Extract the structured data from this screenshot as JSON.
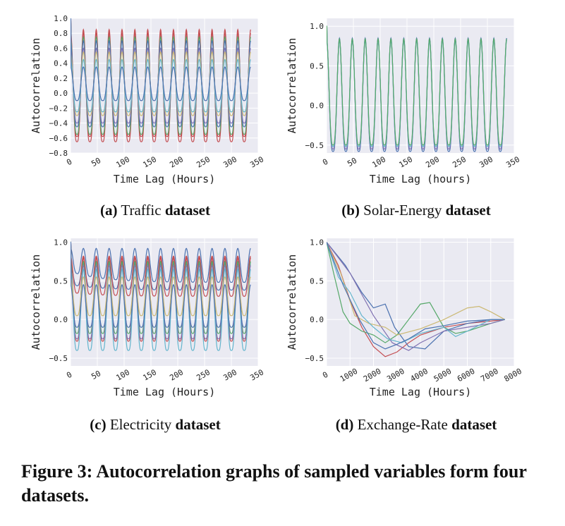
{
  "chart_data": [
    {
      "type": "line",
      "panel": "a",
      "caption_prefix": "(a)",
      "caption_name": "Traffic",
      "caption_suffix": "dataset",
      "xlabel": "Time Lag (Hours)",
      "ylabel": "Autocorrelation",
      "xlim": [
        0,
        350
      ],
      "ylim": [
        -0.8,
        1.0
      ],
      "xticks": [
        "0",
        "50",
        "100",
        "150",
        "200",
        "250",
        "300",
        "350"
      ],
      "xtick_values": [
        0,
        50,
        100,
        150,
        200,
        250,
        300,
        350
      ],
      "yticks": [
        "1.0",
        "0.8",
        "0.6",
        "0.4",
        "0.2",
        "0.0",
        "−0.2",
        "−0.4",
        "−0.6",
        "−0.8"
      ],
      "ytick_values": [
        1.0,
        0.8,
        0.6,
        0.4,
        0.2,
        0.0,
        -0.2,
        -0.4,
        -0.6,
        -0.8
      ],
      "x_max_data": 336,
      "period": 24,
      "generator": "periodic",
      "series": [
        {
          "name": "s1",
          "color": "#C44E52",
          "max": 0.85,
          "min": -0.65,
          "decay": 0.0
        },
        {
          "name": "s2",
          "color": "#C44E52",
          "max": 0.8,
          "min": -0.58,
          "decay": 0.0
        },
        {
          "name": "s3",
          "color": "#55A868",
          "max": 0.75,
          "min": -0.55,
          "decay": 0.0
        },
        {
          "name": "s4",
          "color": "#4C72B0",
          "max": 0.7,
          "min": -0.45,
          "decay": 0.0
        },
        {
          "name": "s5",
          "color": "#8172B2",
          "max": 0.6,
          "min": -0.4,
          "decay": 0.0
        },
        {
          "name": "s6",
          "color": "#CCB974",
          "max": 0.55,
          "min": -0.3,
          "decay": 0.0
        },
        {
          "name": "s7",
          "color": "#64B5CD",
          "max": 0.45,
          "min": -0.25,
          "decay": 0.0
        },
        {
          "name": "s8",
          "color": "#4C72B0",
          "max": 0.35,
          "min": -0.1,
          "decay": 0.0
        }
      ]
    },
    {
      "type": "line",
      "panel": "b",
      "caption_prefix": "(b)",
      "caption_name": "Solar-Energy",
      "caption_suffix": "dataset",
      "xlabel": "Time Lag (hours)",
      "ylabel": "Autocorrelation",
      "xlim": [
        0,
        350
      ],
      "ylim": [
        -0.6,
        1.1
      ],
      "xticks": [
        "0",
        "50",
        "100",
        "150",
        "200",
        "250",
        "300",
        "350"
      ],
      "xtick_values": [
        0,
        50,
        100,
        150,
        200,
        250,
        300,
        350
      ],
      "yticks": [
        "1.0",
        "0.5",
        "0.0",
        "−0.5"
      ],
      "ytick_values": [
        1.0,
        0.5,
        0.0,
        -0.5
      ],
      "x_max_data": 336,
      "period": 24,
      "generator": "periodic",
      "series": [
        {
          "name": "s1",
          "color": "#4C72B0",
          "max": 0.85,
          "min": -0.58,
          "decay": 0.0
        },
        {
          "name": "s2",
          "color": "#8172B2",
          "max": 0.83,
          "min": -0.55,
          "decay": 0.0
        },
        {
          "name": "s3",
          "color": "#64B5CD",
          "max": 0.82,
          "min": -0.52,
          "decay": 0.0
        },
        {
          "name": "s4",
          "color": "#55A868",
          "max": 0.84,
          "min": -0.5,
          "decay": 0.0
        }
      ]
    },
    {
      "type": "line",
      "panel": "c",
      "caption_prefix": "(c)",
      "caption_name": "Electricity",
      "caption_suffix": "dataset",
      "xlabel": "Time Lag (Hours)",
      "ylabel": "Autocorrelation",
      "xlim": [
        0,
        350
      ],
      "ylim": [
        -0.6,
        1.05
      ],
      "xticks": [
        "0",
        "50",
        "100",
        "150",
        "200",
        "250",
        "300",
        "350"
      ],
      "xtick_values": [
        0,
        50,
        100,
        150,
        200,
        250,
        300,
        350
      ],
      "yticks": [
        "1.0",
        "0.5",
        "0.0",
        "−0.5"
      ],
      "ytick_values": [
        1.0,
        0.5,
        0.0,
        -0.5
      ],
      "x_max_data": 336,
      "period": 24,
      "generator": "periodic",
      "series": [
        {
          "name": "s1",
          "color": "#4C72B0",
          "max": 0.92,
          "min": 0.62,
          "decay": 0.45,
          "floor": 0.48
        },
        {
          "name": "s2",
          "color": "#4C72B0",
          "max": 0.72,
          "min": 0.45,
          "decay": 0.35,
          "floor": 0.38
        },
        {
          "name": "s3",
          "color": "#C44E52",
          "max": 0.82,
          "min": 0.35,
          "decay": 0.2,
          "floor": 0.3
        },
        {
          "name": "s4",
          "color": "#C44E52",
          "max": 0.8,
          "min": -0.28,
          "decay": 0.0
        },
        {
          "name": "s5",
          "color": "#55A868",
          "max": 0.75,
          "min": -0.18,
          "decay": 0.0
        },
        {
          "name": "s6",
          "color": "#8172B2",
          "max": 0.7,
          "min": -0.25,
          "decay": 0.0
        },
        {
          "name": "s7",
          "color": "#64B5CD",
          "max": 0.65,
          "min": -0.4,
          "decay": 0.0
        },
        {
          "name": "s8",
          "color": "#CCB974",
          "max": 0.55,
          "min": 0.05,
          "decay": 0.0
        },
        {
          "name": "s9",
          "color": "#4C72B0",
          "max": 0.45,
          "min": -0.1,
          "decay": 0.0
        }
      ]
    },
    {
      "type": "line",
      "panel": "d",
      "caption_prefix": "(d)",
      "caption_name": "Exchange-Rate",
      "caption_suffix": "dataset",
      "xlabel": "Time Lag (Hours)",
      "ylabel": "Autocorrelation",
      "xlim": [
        0,
        8000
      ],
      "ylim": [
        -0.6,
        1.05
      ],
      "xticks": [
        "0",
        "1000",
        "2000",
        "3000",
        "4000",
        "5000",
        "6000",
        "7000",
        "8000"
      ],
      "xtick_values": [
        0,
        1000,
        2000,
        3000,
        4000,
        5000,
        6000,
        7000,
        8000
      ],
      "yticks": [
        "1.0",
        "0.5",
        "0.0",
        "−0.5"
      ],
      "ytick_values": [
        1.0,
        0.5,
        0.0,
        -0.5
      ],
      "generator": "points",
      "series": [
        {
          "name": "s1",
          "color": "#C44E52",
          "points": [
            [
              0,
              1.0
            ],
            [
              500,
              0.7
            ],
            [
              1000,
              0.25
            ],
            [
              1500,
              -0.1
            ],
            [
              2000,
              -0.35
            ],
            [
              2500,
              -0.48
            ],
            [
              3000,
              -0.42
            ],
            [
              3500,
              -0.3
            ],
            [
              4000,
              -0.2
            ],
            [
              5000,
              -0.1
            ],
            [
              6000,
              -0.05
            ],
            [
              7000,
              -0.02
            ],
            [
              7600,
              0.0
            ]
          ]
        },
        {
          "name": "s2",
          "color": "#55A868",
          "points": [
            [
              0,
              1.0
            ],
            [
              300,
              0.6
            ],
            [
              700,
              0.1
            ],
            [
              1000,
              -0.05
            ],
            [
              1500,
              -0.15
            ],
            [
              2000,
              -0.2
            ],
            [
              2500,
              -0.3
            ],
            [
              3000,
              -0.2
            ],
            [
              3500,
              0.0
            ],
            [
              4000,
              0.2
            ],
            [
              4400,
              0.22
            ],
            [
              5000,
              -0.1
            ],
            [
              5500,
              -0.18
            ],
            [
              6000,
              -0.15
            ],
            [
              7000,
              -0.05
            ],
            [
              7600,
              0.0
            ]
          ]
        },
        {
          "name": "s3",
          "color": "#4C72B0",
          "points": [
            [
              0,
              1.0
            ],
            [
              800,
              0.7
            ],
            [
              1500,
              0.35
            ],
            [
              2000,
              0.15
            ],
            [
              2500,
              0.2
            ],
            [
              2900,
              -0.1
            ],
            [
              3500,
              -0.35
            ],
            [
              4200,
              -0.38
            ],
            [
              5000,
              -0.15
            ],
            [
              6000,
              -0.05
            ],
            [
              7000,
              0.0
            ],
            [
              7600,
              0.0
            ]
          ]
        },
        {
          "name": "s4",
          "color": "#8172B2",
          "points": [
            [
              0,
              1.0
            ],
            [
              1000,
              0.6
            ],
            [
              2000,
              0.05
            ],
            [
              2800,
              -0.3
            ],
            [
              3500,
              -0.4
            ],
            [
              4000,
              -0.3
            ],
            [
              5000,
              -0.15
            ],
            [
              6000,
              -0.1
            ],
            [
              7000,
              -0.05
            ],
            [
              7600,
              0.0
            ]
          ]
        },
        {
          "name": "s5",
          "color": "#CCB974",
          "points": [
            [
              0,
              1.0
            ],
            [
              600,
              0.6
            ],
            [
              1200,
              0.05
            ],
            [
              1800,
              -0.05
            ],
            [
              2500,
              -0.1
            ],
            [
              3000,
              -0.2
            ],
            [
              4000,
              -0.12
            ],
            [
              5000,
              0.0
            ],
            [
              6000,
              0.15
            ],
            [
              6500,
              0.17
            ],
            [
              7000,
              0.1
            ],
            [
              7600,
              0.0
            ]
          ]
        },
        {
          "name": "s6",
          "color": "#64B5CD",
          "points": [
            [
              0,
              1.0
            ],
            [
              500,
              0.55
            ],
            [
              1000,
              0.35
            ],
            [
              1500,
              0.05
            ],
            [
              2000,
              -0.1
            ],
            [
              2600,
              -0.25
            ],
            [
              3200,
              -0.3
            ],
            [
              4000,
              -0.18
            ],
            [
              5000,
              -0.1
            ],
            [
              5500,
              -0.22
            ],
            [
              6000,
              -0.15
            ],
            [
              7000,
              0.0
            ],
            [
              7600,
              0.0
            ]
          ]
        },
        {
          "name": "s7",
          "color": "#4C72B0",
          "points": [
            [
              0,
              1.0
            ],
            [
              700,
              0.45
            ],
            [
              1400,
              0.0
            ],
            [
              2000,
              -0.3
            ],
            [
              2500,
              -0.38
            ],
            [
              3000,
              -0.32
            ],
            [
              3500,
              -0.25
            ],
            [
              4200,
              -0.12
            ],
            [
              5000,
              -0.08
            ],
            [
              6000,
              -0.02
            ],
            [
              7000,
              0.0
            ],
            [
              7600,
              0.0
            ]
          ]
        }
      ]
    }
  ],
  "figure_caption": "Figure 3: Autocorrelation graphs of sampled variables form four datasets.",
  "colors": {
    "plot_bg": "#EAEAF2",
    "grid": "#FFFFFF"
  }
}
